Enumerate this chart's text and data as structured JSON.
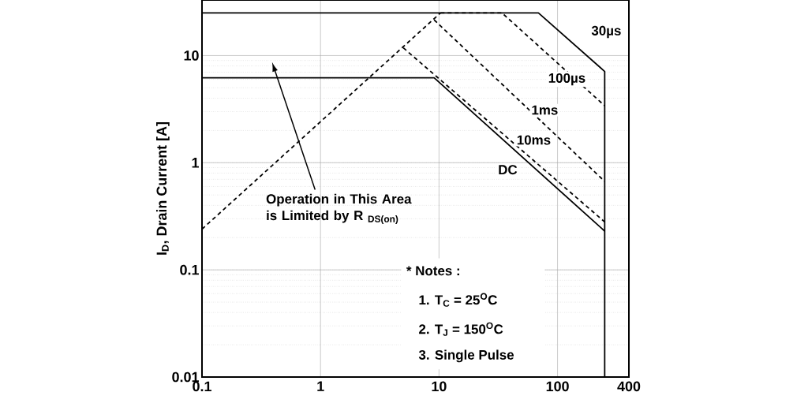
{
  "chart_data": {
    "type": "line",
    "ylabel": "I$_{D}$, Drain Current [A]",
    "log": "xy",
    "grid": true,
    "xlim": [
      0.1,
      400
    ],
    "xticks": [
      0.1,
      1,
      10,
      100,
      400
    ],
    "ylim": [
      0.01,
      33
    ],
    "yticks": [
      0.01,
      0.1,
      1,
      10
    ],
    "series": [
      {
        "name": "30µs",
        "color": "#000000",
        "line_style": "solid",
        "x": [
          0.1,
          69,
          250,
          250
        ],
        "values": [
          25,
          25,
          7.1,
          0.01
        ]
      },
      {
        "name": "100µs",
        "color": "#000000",
        "line_style": "dashed",
        "x": [
          10.3,
          34,
          250
        ],
        "values": [
          25,
          25,
          3.4
        ]
      },
      {
        "name": "1ms",
        "color": "#000000",
        "line_style": "dashed",
        "x": [
          9.1,
          250
        ],
        "values": [
          21.5,
          0.67
        ]
      },
      {
        "name": "10ms",
        "color": "#000000",
        "line_style": "dashed",
        "x": [
          5.0,
          250
        ],
        "values": [
          11.8,
          0.28
        ]
      },
      {
        "name": "DC",
        "color": "#000000",
        "line_style": "solid",
        "x": [
          0.1,
          9.1,
          250
        ],
        "values": [
          6.2,
          6.2,
          0.23
        ]
      },
      {
        "color": "#000000",
        "line_style": "dashed",
        "x": [
          0.1,
          10.3
        ],
        "values": [
          0.24,
          25
        ]
      }
    ],
    "annotations": [
      "Operation in This Area\nis Limited by R $_{DS(on)}$",
      "* Notes :",
      "1. T$_{C}$ = 25$^{O}$C",
      "2. T$_{J}$ = 150$^{O}$C",
      "3. Single Pulse"
    ]
  }
}
